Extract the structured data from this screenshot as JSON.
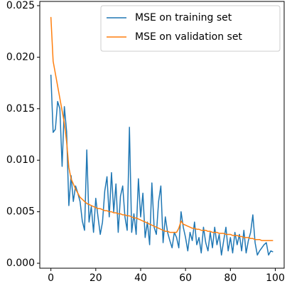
{
  "chart_data": {
    "type": "line",
    "x": [
      0,
      1,
      2,
      3,
      4,
      5,
      6,
      7,
      8,
      9,
      10,
      11,
      12,
      13,
      14,
      15,
      16,
      17,
      18,
      19,
      20,
      21,
      22,
      23,
      24,
      25,
      26,
      27,
      28,
      29,
      30,
      31,
      32,
      33,
      34,
      35,
      36,
      37,
      38,
      39,
      40,
      41,
      42,
      43,
      44,
      45,
      46,
      47,
      48,
      49,
      50,
      51,
      52,
      53,
      54,
      55,
      56,
      57,
      58,
      59,
      60,
      61,
      62,
      63,
      64,
      65,
      66,
      67,
      68,
      69,
      70,
      71,
      72,
      73,
      74,
      75,
      76,
      77,
      78,
      79,
      80,
      81,
      82,
      83,
      84,
      85,
      86,
      87,
      88,
      89,
      90,
      91,
      92,
      93,
      94,
      95,
      96,
      97,
      98,
      99
    ],
    "series": [
      {
        "name": "MSE on training set",
        "color": "#1f77b4",
        "values": [
          0.0183,
          0.0127,
          0.013,
          0.0157,
          0.015,
          0.0094,
          0.0152,
          0.0128,
          0.0056,
          0.0085,
          0.006,
          0.0075,
          0.0068,
          0.006,
          0.0041,
          0.0032,
          0.011,
          0.004,
          0.0055,
          0.003,
          0.0063,
          0.0045,
          0.0028,
          0.004,
          0.007,
          0.0084,
          0.0045,
          0.0088,
          0.005,
          0.0077,
          0.003,
          0.0065,
          0.0075,
          0.0045,
          0.0032,
          0.0132,
          0.003,
          0.0048,
          0.0028,
          0.0082,
          0.0045,
          0.0068,
          0.0025,
          0.004,
          0.0018,
          0.0078,
          0.0035,
          0.0028,
          0.006,
          0.0075,
          0.002,
          0.0045,
          0.003,
          0.0022,
          0.0015,
          0.003,
          0.0025,
          0.0015,
          0.005,
          0.0035,
          0.0025,
          0.0012,
          0.003,
          0.0022,
          0.004,
          0.0018,
          0.0025,
          0.001,
          0.0035,
          0.002,
          0.0012,
          0.003,
          0.0015,
          0.0035,
          0.0018,
          0.0028,
          0.0008,
          0.0022,
          0.0035,
          0.0012,
          0.0025,
          0.001,
          0.003,
          0.0018,
          0.0028,
          0.0012,
          0.0032,
          0.001,
          0.0022,
          0.003,
          0.0047,
          0.002,
          0.0008,
          0.0012,
          0.0015,
          0.0018,
          0.002,
          0.0008,
          0.0012,
          0.0011
        ]
      },
      {
        "name": "MSE on validation set",
        "color": "#ff7f0e",
        "values": [
          0.0239,
          0.0196,
          0.0184,
          0.0172,
          0.016,
          0.0148,
          0.0136,
          0.0118,
          0.0093,
          0.0082,
          0.0077,
          0.0072,
          0.0068,
          0.0064,
          0.0062,
          0.006,
          0.0058,
          0.0057,
          0.0056,
          0.0055,
          0.0054,
          0.0053,
          0.0053,
          0.0052,
          0.0051,
          0.0051,
          0.005,
          0.005,
          0.0049,
          0.0049,
          0.0048,
          0.0048,
          0.0047,
          0.0047,
          0.0046,
          0.0046,
          0.0045,
          0.0044,
          0.0044,
          0.0043,
          0.0042,
          0.0041,
          0.004,
          0.0039,
          0.0038,
          0.0037,
          0.0036,
          0.0035,
          0.0034,
          0.0033,
          0.0032,
          0.0031,
          0.0031,
          0.003,
          0.003,
          0.003,
          0.003,
          0.0034,
          0.0041,
          0.0038,
          0.0037,
          0.0036,
          0.0035,
          0.0034,
          0.0034,
          0.0033,
          0.0033,
          0.0032,
          0.0032,
          0.0032,
          0.0031,
          0.0031,
          0.003,
          0.003,
          0.003,
          0.0029,
          0.0029,
          0.0029,
          0.0028,
          0.0028,
          0.0028,
          0.0027,
          0.0027,
          0.0027,
          0.0026,
          0.0026,
          0.0025,
          0.0025,
          0.0025,
          0.0024,
          0.0024,
          0.0023,
          0.0023,
          0.0023,
          0.0022,
          0.0022,
          0.0022,
          0.0022,
          0.0022,
          0.0022
        ]
      }
    ],
    "xlim": [
      -4.95,
      103.95
    ],
    "xticks": [
      0,
      20,
      40,
      60,
      80,
      100
    ],
    "ylim": [
      -0.00048,
      0.02541
    ],
    "yticks": [
      {
        "value": 0,
        "label": "0.000"
      },
      {
        "value": 0.005,
        "label": "0.005"
      },
      {
        "value": 0.01,
        "label": "0.010"
      },
      {
        "value": 0.015,
        "label": "0.015"
      },
      {
        "value": 0.02,
        "label": "0.020"
      },
      {
        "value": 0.025,
        "label": "0.025"
      }
    ],
    "legend": "upper right",
    "grid": false
  }
}
